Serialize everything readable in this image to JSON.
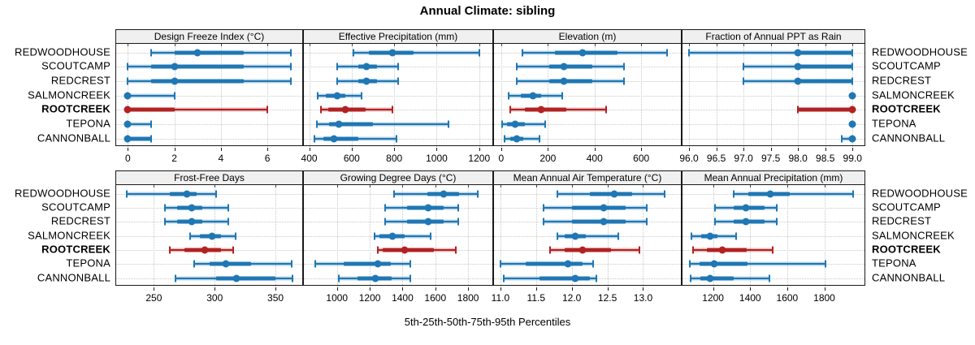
{
  "title": "Annual Climate: sibling",
  "xlabel": "5th-25th-50th-75th-95th Percentiles",
  "sites": [
    "REDWOODHOUSE",
    "SCOUTCAMP",
    "REDCREST",
    "SALMONCREEK",
    "ROOTCREEK",
    "TEPONA",
    "CANNONBALL"
  ],
  "highlight_site": "ROOTCREEK",
  "percentile_labels": [
    "5th",
    "25th",
    "50th",
    "75th",
    "95th"
  ],
  "colors": {
    "site": "#1f77b4",
    "highlight": "#b22222",
    "header_bg": "#f0f0f0",
    "grid": "#c9c9c9",
    "border": "#1a1a1a"
  },
  "chart_data": [
    {
      "type": "dot-whisker",
      "title": "Design Freeze Index (°C)",
      "xlim": [
        -0.5,
        7.5
      ],
      "ticks": [
        0,
        2,
        4,
        6
      ],
      "tick_labels": [
        "0",
        "2",
        "4",
        "6"
      ],
      "series": [
        {
          "site": "REDWOODHOUSE",
          "percentiles": [
            1,
            2,
            3,
            5,
            7
          ]
        },
        {
          "site": "SCOUTCAMP",
          "percentiles": [
            0,
            1,
            2,
            5,
            7
          ]
        },
        {
          "site": "REDCREST",
          "percentiles": [
            0,
            1,
            2,
            5,
            7
          ]
        },
        {
          "site": "SALMONCREEK",
          "percentiles": [
            0,
            0,
            0,
            0,
            2
          ]
        },
        {
          "site": "ROOTCREEK",
          "percentiles": [
            0,
            0,
            0,
            2,
            6
          ]
        },
        {
          "site": "TEPONA",
          "percentiles": [
            0,
            0,
            0,
            0,
            1
          ]
        },
        {
          "site": "CANNONBALL",
          "percentiles": [
            0,
            0,
            0,
            1,
            1
          ]
        }
      ]
    },
    {
      "type": "dot-whisker",
      "title": "Effective Precipitation (mm)",
      "xlim": [
        375,
        1262
      ],
      "ticks": [
        400,
        600,
        800,
        1000,
        1200
      ],
      "tick_labels": [
        "400",
        "600",
        "800",
        "1000",
        "1200"
      ],
      "series": [
        {
          "site": "REDWOODHOUSE",
          "percentiles": [
            610,
            680,
            790,
            890,
            1200
          ]
        },
        {
          "site": "SCOUTCAMP",
          "percentiles": [
            530,
            630,
            670,
            720,
            820
          ]
        },
        {
          "site": "REDCREST",
          "percentiles": [
            530,
            630,
            670,
            720,
            820
          ]
        },
        {
          "site": "SALMONCREEK",
          "percentiles": [
            440,
            480,
            530,
            570,
            645
          ]
        },
        {
          "site": "ROOTCREEK",
          "percentiles": [
            455,
            490,
            570,
            665,
            790
          ]
        },
        {
          "site": "TEPONA",
          "percentiles": [
            435,
            495,
            540,
            700,
            1055
          ]
        },
        {
          "site": "CANNONBALL",
          "percentiles": [
            425,
            465,
            515,
            630,
            810
          ]
        }
      ]
    },
    {
      "type": "dot-whisker",
      "title": "Elevation (m)",
      "xlim": [
        -31,
        770
      ],
      "ticks": [
        0,
        200,
        400,
        600
      ],
      "tick_labels": [
        "0",
        "200",
        "400",
        "600"
      ],
      "series": [
        {
          "site": "REDWOODHOUSE",
          "percentiles": [
            90,
            230,
            350,
            500,
            710
          ]
        },
        {
          "site": "SCOUTCAMP",
          "percentiles": [
            65,
            205,
            270,
            390,
            525
          ]
        },
        {
          "site": "REDCREST",
          "percentiles": [
            65,
            205,
            270,
            390,
            525
          ]
        },
        {
          "site": "SALMONCREEK",
          "percentiles": [
            30,
            85,
            135,
            170,
            260
          ]
        },
        {
          "site": "ROOTCREEK",
          "percentiles": [
            40,
            100,
            170,
            280,
            450
          ]
        },
        {
          "site": "TEPONA",
          "percentiles": [
            5,
            25,
            60,
            100,
            190
          ]
        },
        {
          "site": "CANNONBALL",
          "percentiles": [
            15,
            40,
            65,
            95,
            165
          ]
        }
      ]
    },
    {
      "type": "dot-whisker",
      "title": "Fraction of Annual PPT as Rain",
      "xlim": [
        95.88,
        99.22
      ],
      "ticks": [
        96.0,
        96.5,
        97.0,
        97.5,
        98.0,
        98.5,
        99.0
      ],
      "tick_labels": [
        "96.0",
        "96.5",
        "97.0",
        "97.5",
        "98.0",
        "98.5",
        "99.0"
      ],
      "series": [
        {
          "site": "REDWOODHOUSE",
          "percentiles": [
            96.0,
            98.0,
            98.0,
            99.0,
            99.0
          ]
        },
        {
          "site": "SCOUTCAMP",
          "percentiles": [
            97.0,
            98.0,
            98.0,
            99.0,
            99.0
          ]
        },
        {
          "site": "REDCREST",
          "percentiles": [
            97.0,
            98.0,
            98.0,
            99.0,
            99.0
          ]
        },
        {
          "site": "SALMONCREEK",
          "percentiles": [
            99.0,
            99.0,
            99.0,
            99.0,
            99.0
          ]
        },
        {
          "site": "ROOTCREEK",
          "percentiles": [
            98.0,
            98.0,
            99.0,
            99.0,
            99.0
          ]
        },
        {
          "site": "TEPONA",
          "percentiles": [
            99.0,
            99.0,
            99.0,
            99.0,
            99.0
          ]
        },
        {
          "site": "CANNONBALL",
          "percentiles": [
            98.8,
            99.0,
            99.0,
            99.0,
            99.0
          ]
        }
      ]
    },
    {
      "type": "dot-whisker",
      "title": "Frost-Free Days",
      "xlim": [
        219,
        372
      ],
      "ticks": [
        250,
        300,
        350
      ],
      "tick_labels": [
        "250",
        "300",
        "350"
      ],
      "series": [
        {
          "site": "REDWOODHOUSE",
          "percentiles": [
            228,
            263,
            277,
            285,
            301
          ]
        },
        {
          "site": "SCOUTCAMP",
          "percentiles": [
            259,
            269,
            281,
            290,
            311
          ]
        },
        {
          "site": "REDCREST",
          "percentiles": [
            259,
            269,
            281,
            290,
            311
          ]
        },
        {
          "site": "SALMONCREEK",
          "percentiles": [
            280,
            288,
            298,
            305,
            317
          ]
        },
        {
          "site": "ROOTCREEK",
          "percentiles": [
            263,
            275,
            292,
            305,
            315
          ]
        },
        {
          "site": "TEPONA",
          "percentiles": [
            283,
            296,
            309,
            330,
            363
          ]
        },
        {
          "site": "CANNONBALL",
          "percentiles": [
            268,
            301,
            318,
            350,
            364
          ]
        }
      ]
    },
    {
      "type": "dot-whisker",
      "title": "Growing Degree Days (°C)",
      "xlim": [
        798,
        1948
      ],
      "ticks": [
        1000,
        1200,
        1400,
        1600,
        1800
      ],
      "tick_labels": [
        "1000",
        "1200",
        "1400",
        "1600",
        "1800"
      ],
      "series": [
        {
          "site": "REDWOODHOUSE",
          "percentiles": [
            1350,
            1550,
            1650,
            1745,
            1860
          ]
        },
        {
          "site": "SCOUTCAMP",
          "percentiles": [
            1295,
            1430,
            1555,
            1650,
            1740
          ]
        },
        {
          "site": "REDCREST",
          "percentiles": [
            1295,
            1430,
            1555,
            1650,
            1740
          ]
        },
        {
          "site": "SALMONCREEK",
          "percentiles": [
            1230,
            1260,
            1340,
            1415,
            1570
          ]
        },
        {
          "site": "ROOTCREEK",
          "percentiles": [
            1250,
            1280,
            1415,
            1590,
            1725
          ]
        },
        {
          "site": "TEPONA",
          "percentiles": [
            865,
            1040,
            1250,
            1330,
            1445
          ]
        },
        {
          "site": "CANNONBALL",
          "percentiles": [
            1010,
            1125,
            1235,
            1335,
            1445
          ]
        }
      ]
    },
    {
      "type": "dot-whisker",
      "title": "Mean Annual Air Temperature (°C)",
      "xlim": [
        10.91,
        13.53
      ],
      "ticks": [
        11.0,
        11.5,
        12.0,
        12.5,
        13.0
      ],
      "tick_labels": [
        "11.0",
        "11.5",
        "12.0",
        "12.5",
        "13.0"
      ],
      "series": [
        {
          "site": "REDWOODHOUSE",
          "percentiles": [
            11.8,
            12.25,
            12.6,
            12.85,
            13.3
          ]
        },
        {
          "site": "SCOUTCAMP",
          "percentiles": [
            11.6,
            12.0,
            12.45,
            12.75,
            13.05
          ]
        },
        {
          "site": "REDCREST",
          "percentiles": [
            11.6,
            12.0,
            12.45,
            12.75,
            13.05
          ]
        },
        {
          "site": "SALMONCREEK",
          "percentiles": [
            11.8,
            11.9,
            12.05,
            12.2,
            12.65
          ]
        },
        {
          "site": "ROOTCREEK",
          "percentiles": [
            11.7,
            11.9,
            12.15,
            12.55,
            12.95
          ]
        },
        {
          "site": "TEPONA",
          "percentiles": [
            11.0,
            11.35,
            11.95,
            12.15,
            12.3
          ]
        },
        {
          "site": "CANNONBALL",
          "percentiles": [
            11.05,
            11.55,
            12.05,
            12.25,
            12.35
          ]
        }
      ]
    },
    {
      "type": "dot-whisker",
      "title": "Mean Annual Precipitation (mm)",
      "xlim": [
        1035,
        2017
      ],
      "ticks": [
        1200,
        1400,
        1600,
        1800
      ],
      "tick_labels": [
        "1200",
        "1400",
        "1600",
        "1800"
      ],
      "series": [
        {
          "site": "REDWOODHOUSE",
          "percentiles": [
            1310,
            1390,
            1510,
            1615,
            1955
          ]
        },
        {
          "site": "SCOUTCAMP",
          "percentiles": [
            1210,
            1310,
            1375,
            1480,
            1545
          ]
        },
        {
          "site": "REDCREST",
          "percentiles": [
            1210,
            1310,
            1375,
            1480,
            1545
          ]
        },
        {
          "site": "SALMONCREEK",
          "percentiles": [
            1085,
            1135,
            1185,
            1225,
            1325
          ]
        },
        {
          "site": "ROOTCREEK",
          "percentiles": [
            1090,
            1165,
            1250,
            1380,
            1520
          ]
        },
        {
          "site": "TEPONA",
          "percentiles": [
            1075,
            1125,
            1205,
            1385,
            1805
          ]
        },
        {
          "site": "CANNONBALL",
          "percentiles": [
            1080,
            1130,
            1185,
            1310,
            1505
          ]
        }
      ]
    }
  ]
}
